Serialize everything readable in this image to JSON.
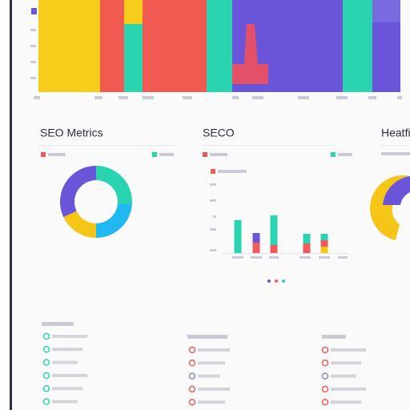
{
  "panels": [
    {
      "title": "SEO Metrics"
    },
    {
      "title": "SECO"
    },
    {
      "title": "Heatfi"
    }
  ],
  "donut": {
    "values": [
      26,
      24,
      18,
      32
    ],
    "colors": [
      "#2ad4b0",
      "#1fb8f0",
      "#f5c518",
      "#6a55d8"
    ]
  },
  "bars": {
    "series": [
      {
        "color": "#f5c518",
        "values": [
          0,
          0,
          0,
          0,
          8
        ]
      },
      {
        "color": "#f05a5a",
        "values": [
          0,
          13,
          10,
          12,
          8
        ]
      },
      {
        "color": "#2ad4b0",
        "values": [
          41,
          0,
          37,
          12,
          8
        ]
      },
      {
        "color": "#6a55d8",
        "values": [
          0,
          12,
          0,
          0,
          0
        ]
      }
    ]
  }
}
